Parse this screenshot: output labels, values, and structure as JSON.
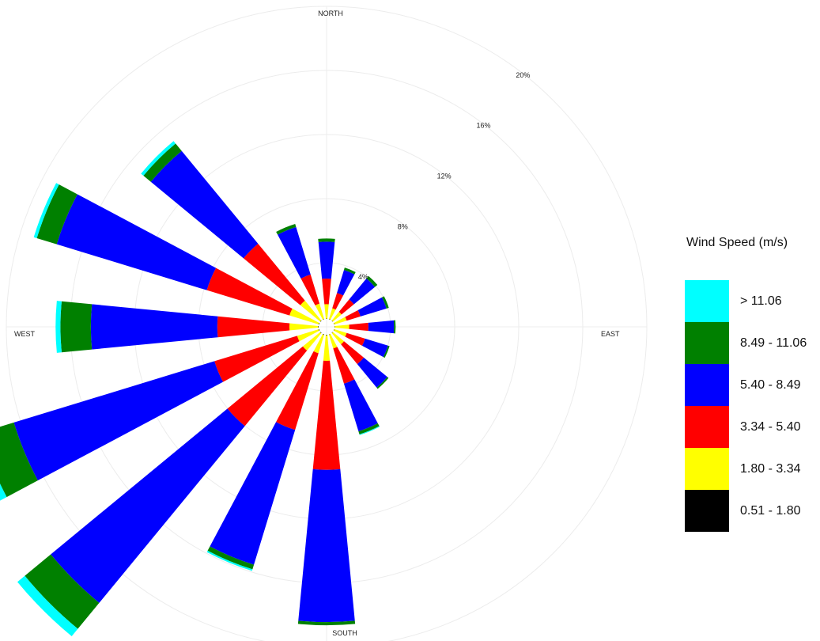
{
  "chart_data": {
    "type": "bar",
    "subtype": "wind-rose",
    "title": "",
    "directions": [
      "N",
      "NNE",
      "NE",
      "ENE",
      "E",
      "ESE",
      "SE",
      "SSE",
      "S",
      "SSW",
      "SW",
      "WSW",
      "W",
      "WNW",
      "NW",
      "NNW"
    ],
    "direction_degrees": [
      0,
      22.5,
      45,
      67.5,
      90,
      112.5,
      135,
      157.5,
      180,
      202.5,
      225,
      247.5,
      270,
      292.5,
      315,
      337.5
    ],
    "compass_labels": {
      "north": "NORTH",
      "east": "EAST",
      "south": "SOUTH",
      "west": "WEST"
    },
    "radial_ticks": [
      4,
      8,
      12,
      16,
      20
    ],
    "radial_tick_labels": [
      "4%",
      "8%",
      "12%",
      "16%",
      "20%"
    ],
    "radial_unit": "%",
    "rlim": [
      0,
      20
    ],
    "stacking": "cumulative",
    "legend_title": "Wind Speed (m/s)",
    "legend_position": "right",
    "series": [
      {
        "name": "0.51 - 1.80",
        "color": "#000000",
        "values": [
          0.02,
          0.02,
          0.02,
          0.02,
          0.02,
          0.02,
          0.02,
          0.02,
          0.03,
          0.03,
          0.03,
          0.03,
          0.03,
          0.03,
          0.03,
          0.02
        ]
      },
      {
        "name": "1.80 - 3.34",
        "color": "#ffff00",
        "values": [
          0.9,
          0.7,
          0.7,
          0.8,
          0.9,
          0.8,
          0.9,
          0.9,
          1.6,
          1.2,
          1.4,
          1.4,
          1.8,
          1.9,
          1.6,
          1.0
        ]
      },
      {
        "name": "3.34 - 5.40",
        "color": "#ff0000",
        "values": [
          1.6,
          1.0,
          1.0,
          0.9,
          1.2,
          1.2,
          1.6,
          2.3,
          6.8,
          5.0,
          6.1,
          5.4,
          4.5,
          5.4,
          4.6,
          1.9
        ]
      },
      {
        "name": "5.40 - 8.49",
        "color": "#0000ff",
        "values": [
          2.3,
          1.5,
          1.7,
          1.7,
          1.6,
          1.5,
          1.9,
          3.1,
          9.5,
          8.8,
          14.3,
          13.1,
          7.9,
          9.8,
          7.5,
          3.1
        ]
      },
      {
        "name": "8.49 - 11.06",
        "color": "#008000",
        "values": [
          0.2,
          0.15,
          0.2,
          0.15,
          0.1,
          0.1,
          0.1,
          0.2,
          0.2,
          0.3,
          2.1,
          2.2,
          1.9,
          1.3,
          0.6,
          0.2
        ]
      },
      {
        "name": "> 11.06",
        "color": "#00ffff",
        "values": [
          0.0,
          0.0,
          0.0,
          0.0,
          0.0,
          0.0,
          0.0,
          0.05,
          0.0,
          0.1,
          0.6,
          0.6,
          0.3,
          0.2,
          0.2,
          0.0
        ]
      }
    ]
  }
}
